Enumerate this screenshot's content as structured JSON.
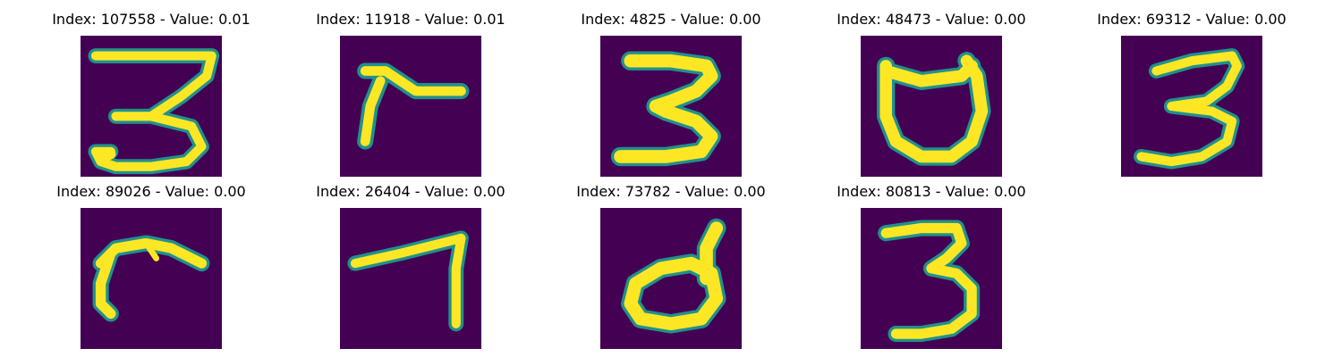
{
  "colors": {
    "background": "#440154",
    "edge": "#21918c",
    "stroke": "#fde725"
  },
  "panels": [
    {
      "title": "Index: 107558 - Value: 0.01",
      "glyph": "digit-three"
    },
    {
      "title": "Index: 11918 - Value: 0.01",
      "glyph": "angle-stroke"
    },
    {
      "title": "Index: 4825 - Value: 0.00",
      "glyph": "digit-three"
    },
    {
      "title": "Index: 48473 - Value: 0.00",
      "glyph": "cup-shape"
    },
    {
      "title": "Index: 69312 - Value: 0.00",
      "glyph": "digit-three"
    },
    {
      "title": "Index: 89026 - Value: 0.00",
      "glyph": "hook-stroke"
    },
    {
      "title": "Index: 26404 - Value: 0.00",
      "glyph": "digit-seven"
    },
    {
      "title": "Index: 73782 - Value: 0.00",
      "glyph": "loop-shape"
    },
    {
      "title": "Index: 80813 - Value: 0.00",
      "glyph": "digit-three"
    }
  ]
}
